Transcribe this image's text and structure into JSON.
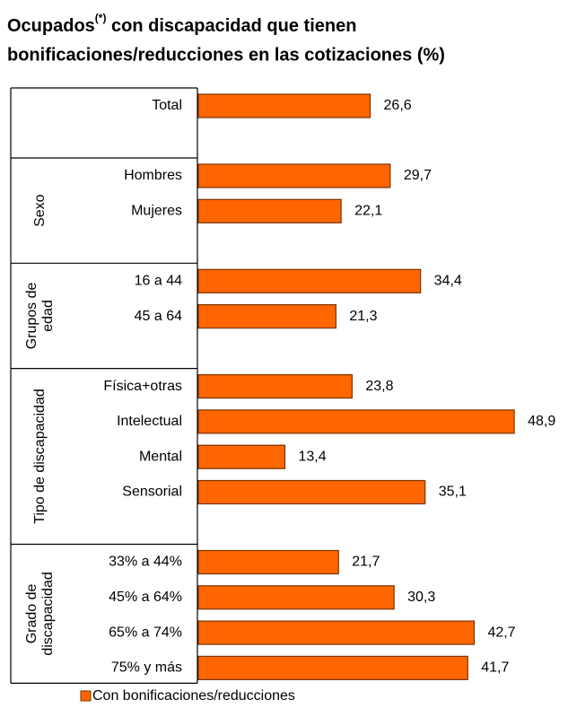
{
  "chart_data": {
    "type": "bar",
    "title": {
      "main": "Ocupados",
      "sup": "(*)",
      "rest": " con discapacidad que tienen",
      "line2": "bonificaciones/reducciones en las cotizaciones (%)"
    },
    "series": [
      {
        "name": "Con bonificaciones/reducciones",
        "color": "#ff6600"
      }
    ],
    "groups": [
      {
        "label": [],
        "categories": [
          "Total"
        ],
        "values": [
          26.6
        ],
        "value_labels": [
          "26,6"
        ]
      },
      {
        "label": [
          "Sexo"
        ],
        "categories": [
          "Hombres",
          "Mujeres"
        ],
        "values": [
          29.7,
          22.1
        ],
        "value_labels": [
          "29,7",
          "22,1"
        ]
      },
      {
        "label": [
          "Grupos de",
          "edad"
        ],
        "categories": [
          "16 a 44",
          "45 a 64"
        ],
        "values": [
          34.4,
          21.3
        ],
        "value_labels": [
          "34,4",
          "21,3"
        ]
      },
      {
        "label": [
          "Tipo de discapacidad"
        ],
        "categories": [
          "Física+otras",
          "Intelectual",
          "Mental",
          "Sensorial"
        ],
        "values": [
          23.8,
          48.9,
          13.4,
          35.1
        ],
        "value_labels": [
          "23,8",
          "48,9",
          "13,4",
          "35,1"
        ]
      },
      {
        "label": [
          "Grado de",
          "discapacidad"
        ],
        "categories": [
          "33% a 44%",
          "45% a 64%",
          "65% a 74%",
          "75% y más"
        ],
        "values": [
          21.7,
          30.3,
          42.7,
          41.7
        ],
        "value_labels": [
          "21,7",
          "30,3",
          "42,7",
          "41,7"
        ]
      }
    ]
  }
}
